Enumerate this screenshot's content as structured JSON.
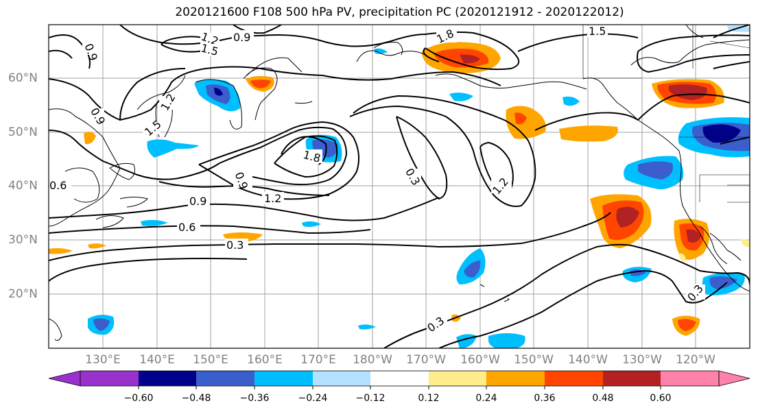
{
  "title": "2020121600 F108 500 hPa PV, precipitation PC (2020121912 - 2020122012)",
  "lon_labels": [
    "130°E",
    "140°E",
    "150°E",
    "160°E",
    "170°E",
    "180°W",
    "170°W",
    "160°W",
    "150°W",
    "140°W",
    "130°W",
    "120°W"
  ],
  "lat_labels": [
    "60°N",
    "50°N",
    "40°N",
    "30°N",
    "20°N"
  ],
  "colorbar": {
    "tick_labels": [
      "−0.60",
      "−0.48",
      "−0.36",
      "−0.24",
      "−0.12",
      "0.12",
      "0.24",
      "0.36",
      "0.48",
      "0.60"
    ],
    "colors": [
      "#9932CC",
      "#00008B",
      "#3A5FCD",
      "#00BFFF",
      "#B2E2FF",
      "#FFFFFF",
      "#FFEC8B",
      "#FFA500",
      "#FF4500",
      "#B22222",
      "#FF82AB"
    ]
  },
  "contour_labels": [
    "0.9",
    "1.2",
    "1.5",
    "1.8",
    "1.2",
    "1.5",
    "0.9",
    "0.6",
    "0.3",
    "0.3",
    "1.2",
    "1.8",
    "1.5",
    "0.9",
    "1.2",
    "1.5",
    "0.3",
    "0.3",
    "0.6"
  ],
  "shading_colors": {
    "neg_light": "#B2E2FF",
    "neg_mid": "#00BFFF",
    "neg_strong": "#3A5FCD",
    "neg_max": "#00008B",
    "pos_light": "#FFEC8B",
    "pos_mid": "#FFA500",
    "pos_strong": "#FF4500",
    "pos_max": "#B22222"
  }
}
